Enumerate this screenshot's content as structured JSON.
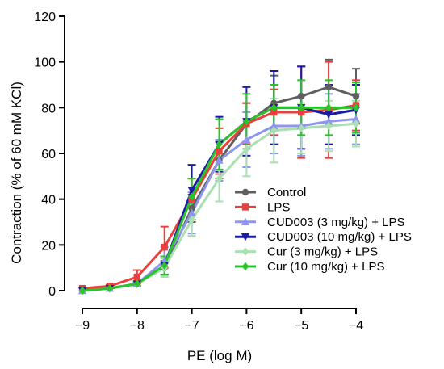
{
  "chart_data": {
    "type": "line",
    "xlabel": "PE (log M)",
    "ylabel": "Contraction (% of 60 mM KCl)",
    "xlim": [
      -9,
      -4
    ],
    "ylim": [
      0,
      120
    ],
    "xticks": [
      -9,
      -8,
      -7,
      -6,
      -5,
      -4
    ],
    "yticks": [
      0,
      20,
      40,
      60,
      80,
      100,
      120
    ],
    "xtick_labels": [
      "−9",
      "−8",
      "−7",
      "−6",
      "−5",
      "−4"
    ],
    "ytick_labels": [
      "0",
      "20",
      "40",
      "60",
      "80",
      "100",
      "120"
    ],
    "grid": false,
    "legend_position": "lower-right",
    "x": [
      -9,
      -8.5,
      -8,
      -7.5,
      -7,
      -6.5,
      -6,
      -5.5,
      -5,
      -4.5,
      -4
    ],
    "series": [
      {
        "name": "Control",
        "color": "#5f5f5f",
        "marker": "circle",
        "values": [
          1,
          1,
          3,
          10,
          36,
          57,
          73,
          82,
          85,
          89,
          85
        ],
        "errors": [
          0,
          0,
          1,
          3,
          6,
          8,
          9,
          12,
          13,
          12,
          12
        ]
      },
      {
        "name": "LPS",
        "color": "#e8403c",
        "marker": "square",
        "values": [
          1,
          2,
          6,
          19,
          40,
          61,
          73,
          78,
          78,
          79,
          81
        ],
        "errors": [
          0,
          0.5,
          3,
          9,
          9,
          10,
          9,
          10,
          20,
          21,
          11
        ]
      },
      {
        "name": "CUD003 (3 mg/kg) + LPS",
        "color": "#8e97ee",
        "marker": "triangle-up",
        "values": [
          0,
          1,
          3,
          13,
          34,
          57,
          66,
          72,
          72,
          74,
          75
        ],
        "errors": [
          0,
          0,
          1,
          6,
          9,
          9,
          12,
          12,
          13,
          12,
          11
        ]
      },
      {
        "name": "CUD003 (10 mg/kg) + LPS",
        "color": "#1b1ba6",
        "marker": "triangle-down",
        "values": [
          0,
          1,
          3,
          11,
          44,
          64,
          74,
          80,
          80,
          77,
          79
        ],
        "errors": [
          0,
          0,
          1,
          4,
          11,
          12,
          15,
          16,
          18,
          13,
          11
        ]
      },
      {
        "name": "Cur (3 mg/kg) + LPS",
        "color": "#a9dfb1",
        "marker": "diamond",
        "values": [
          0,
          1,
          3,
          10,
          31,
          49,
          62,
          70,
          71,
          72,
          73
        ],
        "errors": [
          0,
          0,
          1,
          4,
          7,
          10,
          12,
          14,
          11,
          11,
          10
        ]
      },
      {
        "name": "Cur (10 mg/kg) + LPS",
        "color": "#2ac42a",
        "marker": "diamond",
        "values": [
          0,
          1,
          3,
          11,
          41,
          64,
          74,
          80,
          80,
          80,
          80
        ],
        "errors": [
          0,
          0,
          1,
          4,
          8,
          11,
          12,
          10,
          12,
          12,
          11
        ]
      }
    ]
  }
}
